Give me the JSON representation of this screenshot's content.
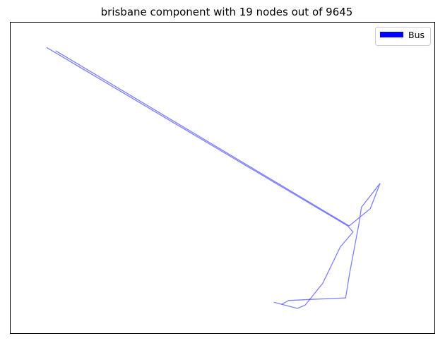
{
  "title": "brisbane component with 19 nodes out of 9645",
  "legend": {
    "entries": [
      {
        "label": "Bus",
        "color": "#0000ff"
      }
    ],
    "placement": "top-right"
  },
  "edge_color": "#0000ff",
  "chart_data": {
    "type": "network",
    "title": "brisbane component with 19 nodes out of 9645",
    "legend_placement": "top-right",
    "axes_ticks": false,
    "series": [
      {
        "name": "Bus",
        "color": "#0000ff"
      }
    ],
    "polylines": [
      {
        "series": "Bus",
        "points": [
          [
            0.0,
            0.975
          ],
          [
            0.856,
            0.363
          ],
          [
            0.871,
            0.342
          ],
          [
            0.835,
            0.291
          ],
          [
            0.785,
            0.166
          ],
          [
            0.735,
            0.091
          ],
          [
            0.713,
            0.08
          ],
          [
            0.646,
            0.101
          ]
        ]
      },
      {
        "series": "Bus",
        "points": [
          [
            0.026,
            0.964
          ],
          [
            0.86,
            0.363
          ]
        ]
      },
      {
        "series": "Bus",
        "points": [
          [
            0.86,
            0.363
          ],
          [
            0.92,
            0.422
          ],
          [
            0.948,
            0.509
          ],
          [
            0.895,
            0.427
          ],
          [
            0.888,
            0.371
          ],
          [
            0.862,
            0.205
          ],
          [
            0.85,
            0.116
          ],
          [
            0.753,
            0.111
          ],
          [
            0.688,
            0.107
          ],
          [
            0.668,
            0.094
          ]
        ]
      }
    ]
  }
}
